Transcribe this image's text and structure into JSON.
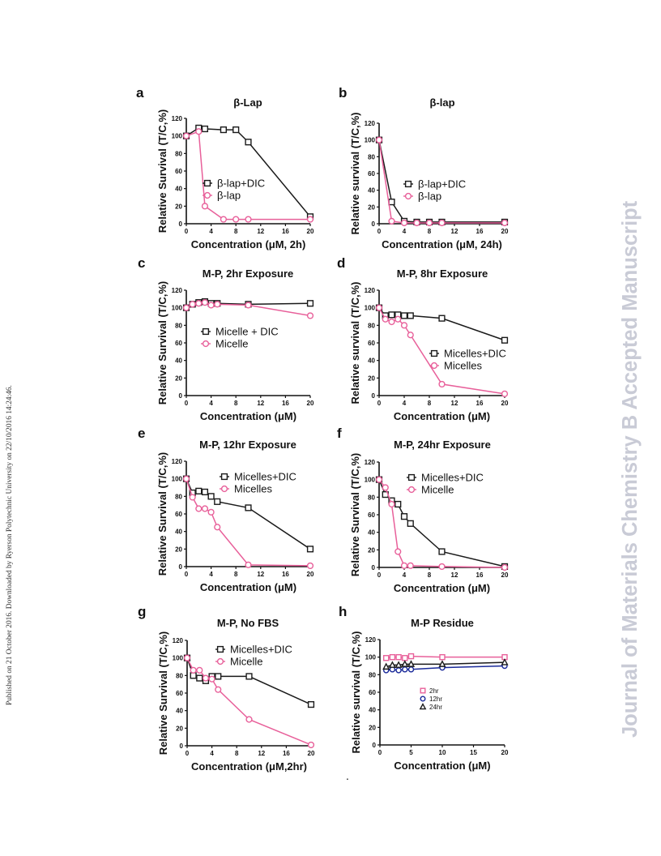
{
  "sidebar_text": "Published on 21 October 2016. Downloaded by Ryerson Polytechnic University on 22/10/2016 14:24:46.",
  "watermark_text": "Journal of Materials Chemistry B Accepted Manuscript",
  "footer_mark": ".",
  "colors": {
    "black_series": "#1a1a1a",
    "pink_series": "#e8609a",
    "blue_series": "#1a2a9a",
    "watermark": "#c9cbd6"
  },
  "chart_data": [
    {
      "id": "a",
      "letter": "a",
      "type": "line",
      "title": "β-Lap",
      "xlabel": "Concentration (μM, 2h)",
      "ylabel": "Relative Survival (T/C,%)",
      "xlim": [
        0,
        20
      ],
      "ylim": [
        0,
        120
      ],
      "xticks": [
        "0",
        "4",
        "8",
        "12",
        "16",
        "20"
      ],
      "yticks": [
        "0",
        "20",
        "40",
        "60",
        "80",
        "100",
        "120"
      ],
      "legend_position": "middle-left",
      "series": [
        {
          "name": "β-lap+DIC",
          "marker": "square",
          "color": "#1a1a1a",
          "x": [
            0,
            2,
            3,
            6,
            8,
            10,
            20
          ],
          "y": [
            100,
            109,
            108,
            107,
            107,
            93,
            8
          ]
        },
        {
          "name": "β-lap",
          "marker": "circle",
          "color": "#e8609a",
          "x": [
            0,
            2,
            3,
            6,
            8,
            10,
            20
          ],
          "y": [
            100,
            105,
            20,
            5,
            5,
            5,
            5
          ]
        }
      ]
    },
    {
      "id": "b",
      "letter": "b",
      "type": "line",
      "title": "β-lap",
      "xlabel": "Concentration (μM, 24h)",
      "ylabel": "Relative survival (T/C,%)",
      "xlim": [
        0,
        20
      ],
      "ylim": [
        0,
        120
      ],
      "xticks": [
        "0",
        "4",
        "8",
        "12",
        "16",
        "20"
      ],
      "yticks": [
        "0",
        "20",
        "40",
        "60",
        "80",
        "100",
        "120"
      ],
      "legend_position": "middle-left",
      "series": [
        {
          "name": "β-lap+DIC",
          "marker": "square",
          "color": "#1a1a1a",
          "x": [
            0,
            2,
            4,
            6,
            8,
            10,
            20
          ],
          "y": [
            100,
            26,
            3,
            2,
            2,
            2,
            2
          ]
        },
        {
          "name": "β-lap",
          "marker": "circle",
          "color": "#e8609a",
          "x": [
            0,
            2,
            4,
            6,
            8,
            10,
            20
          ],
          "y": [
            100,
            3,
            1,
            1,
            1,
            1,
            1
          ]
        }
      ]
    },
    {
      "id": "c",
      "letter": "c",
      "type": "line",
      "title": "M-P, 2hr Exposure",
      "xlabel": "Concentration (μM)",
      "ylabel": "Relative Survival (T/C,%)",
      "xlim": [
        0,
        20
      ],
      "ylim": [
        0,
        120
      ],
      "xticks": [
        "0",
        "4",
        "8",
        "12",
        "16",
        "20"
      ],
      "yticks": [
        "0",
        "20",
        "40",
        "60",
        "80",
        "100",
        "120"
      ],
      "legend_position": "middle-left",
      "series": [
        {
          "name": "Micelle + DIC",
          "marker": "square",
          "color": "#1a1a1a",
          "x": [
            0,
            1,
            2,
            3,
            4,
            5,
            10,
            20
          ],
          "y": [
            100,
            104,
            106,
            107,
            105,
            105,
            104,
            105
          ]
        },
        {
          "name": "Micelle",
          "marker": "circle",
          "color": "#e8609a",
          "x": [
            0,
            1,
            2,
            3,
            4,
            5,
            10,
            20
          ],
          "y": [
            100,
            104,
            105,
            106,
            103,
            104,
            103,
            91
          ]
        }
      ]
    },
    {
      "id": "d",
      "letter": "d",
      "type": "line",
      "title": "M-P, 8hr Exposure",
      "xlabel": "Concentration (μM)",
      "ylabel": "Relative survival (T/C,%)",
      "xlim": [
        0,
        20
      ],
      "ylim": [
        0,
        120
      ],
      "xticks": [
        "0",
        "4",
        "8",
        "12",
        "16",
        "20"
      ],
      "yticks": [
        "0",
        "20",
        "40",
        "60",
        "80",
        "100",
        "120"
      ],
      "legend_position": "middle-right",
      "series": [
        {
          "name": "Micelles+DIC",
          "marker": "square",
          "color": "#1a1a1a",
          "x": [
            0,
            1,
            2,
            3,
            4,
            5,
            10,
            20
          ],
          "y": [
            100,
            91,
            92,
            92,
            91,
            91,
            88,
            63
          ]
        },
        {
          "name": "Micelles",
          "marker": "circle",
          "color": "#e8609a",
          "x": [
            0,
            1,
            2,
            3,
            4,
            5,
            10,
            20
          ],
          "y": [
            100,
            87,
            84,
            87,
            80,
            69,
            13,
            2
          ]
        }
      ]
    },
    {
      "id": "e",
      "letter": "e",
      "type": "line",
      "title": "M-P, 12hr Exposure",
      "xlabel": "Concentration (μM)",
      "ylabel": "Relative Survival (T/C,%)",
      "xlim": [
        0,
        20
      ],
      "ylim": [
        0,
        120
      ],
      "xticks": [
        "0",
        "4",
        "8",
        "12",
        "16",
        "20"
      ],
      "yticks": [
        "0",
        "20",
        "40",
        "60",
        "80",
        "100",
        "120"
      ],
      "legend_position": "top-right",
      "series": [
        {
          "name": "Micelles+DIC",
          "marker": "square",
          "color": "#1a1a1a",
          "x": [
            0,
            1,
            2,
            3,
            4,
            5,
            10,
            20
          ],
          "y": [
            100,
            84,
            86,
            85,
            80,
            74,
            67,
            20
          ]
        },
        {
          "name": "Micelles",
          "marker": "circle",
          "color": "#e8609a",
          "x": [
            0,
            1,
            2,
            3,
            4,
            5,
            10,
            20
          ],
          "y": [
            100,
            79,
            66,
            66,
            62,
            45,
            2,
            1
          ]
        }
      ]
    },
    {
      "id": "f",
      "letter": "f",
      "type": "line",
      "title": "M-P, 24hr Exposure",
      "xlabel": "Concentration (μM)",
      "ylabel": "Relative Survival (T/C,%)",
      "xlim": [
        0,
        20
      ],
      "ylim": [
        0,
        120
      ],
      "xticks": [
        "0",
        "4",
        "8",
        "12",
        "16",
        "20"
      ],
      "yticks": [
        "0",
        "20",
        "40",
        "60",
        "80",
        "100",
        "120"
      ],
      "legend_position": "top-right",
      "series": [
        {
          "name": "Micelles+DIC",
          "marker": "square",
          "color": "#1a1a1a",
          "x": [
            0,
            1,
            2,
            3,
            4,
            5,
            10,
            20
          ],
          "y": [
            100,
            83,
            76,
            72,
            58,
            50,
            18,
            1
          ]
        },
        {
          "name": "Micelle",
          "marker": "circle",
          "color": "#e8609a",
          "x": [
            0,
            1,
            2,
            3,
            4,
            5,
            10,
            20
          ],
          "y": [
            100,
            91,
            72,
            18,
            2,
            2,
            1,
            0
          ]
        }
      ]
    },
    {
      "id": "g",
      "letter": "g",
      "type": "line",
      "title": "M-P, No FBS",
      "xlabel": "Concentration (μM,2hr)",
      "ylabel": "Relative Survival (T/C,%)",
      "xlim": [
        0,
        20
      ],
      "ylim": [
        0,
        120
      ],
      "xticks": [
        "0",
        "4",
        "8",
        "12",
        "16",
        "20"
      ],
      "yticks": [
        "0",
        "20",
        "40",
        "60",
        "80",
        "100",
        "120"
      ],
      "legend_position": "top-right",
      "series": [
        {
          "name": "Micelles+DIC",
          "marker": "square",
          "color": "#1a1a1a",
          "x": [
            0,
            1,
            2,
            3,
            4,
            5,
            10,
            20
          ],
          "y": [
            100,
            80,
            77,
            74,
            79,
            79,
            79,
            47
          ]
        },
        {
          "name": "Micelle",
          "marker": "circle",
          "color": "#e8609a",
          "x": [
            0,
            1,
            2,
            3,
            4,
            5,
            10,
            20
          ],
          "y": [
            100,
            86,
            86,
            77,
            76,
            64,
            30,
            1
          ]
        }
      ]
    },
    {
      "id": "h",
      "letter": "h",
      "type": "line",
      "title": "M-P Residue",
      "xlabel": "Concentration (μM)",
      "ylabel": "Relative survival (T/C,%)",
      "xlim": [
        0,
        20
      ],
      "ylim": [
        0,
        120
      ],
      "xticks": [
        "0",
        "5",
        "10",
        "15",
        "20"
      ],
      "yticks": [
        "0",
        "20",
        "40",
        "60",
        "80",
        "100",
        "120"
      ],
      "legend_position": "bottom-center",
      "series": [
        {
          "name": "2hr",
          "marker": "square",
          "color": "#e8609a",
          "x": [
            1,
            2,
            3,
            4,
            5,
            10,
            20
          ],
          "y": [
            99,
            100,
            100,
            99,
            101,
            100,
            100
          ]
        },
        {
          "name": "12hr",
          "marker": "circle",
          "color": "#1a2a9a",
          "x": [
            1,
            2,
            3,
            4,
            5,
            10,
            20
          ],
          "y": [
            85,
            86,
            85,
            86,
            86,
            88,
            90
          ]
        },
        {
          "name": "24hr",
          "marker": "triangle",
          "color": "#1a1a1a",
          "x": [
            1,
            2,
            3,
            4,
            5,
            10,
            20
          ],
          "y": [
            89,
            91,
            91,
            92,
            92,
            92,
            94
          ]
        }
      ]
    }
  ]
}
